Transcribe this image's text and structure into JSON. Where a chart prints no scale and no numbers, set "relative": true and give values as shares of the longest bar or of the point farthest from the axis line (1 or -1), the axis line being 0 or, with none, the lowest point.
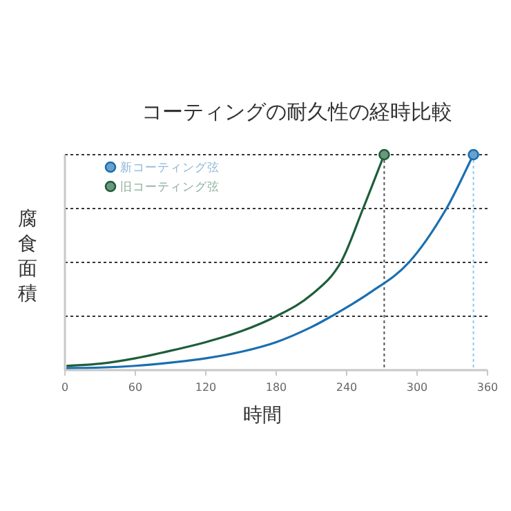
{
  "chart_data": {
    "type": "line",
    "title": "コーティングの耐久性の経時比較",
    "xlabel": "時間",
    "ylabel": "腐食面積",
    "relative": true,
    "xlim": [
      0,
      360
    ],
    "xticks": [
      0,
      60,
      120,
      180,
      240,
      300,
      360
    ],
    "grid": "y",
    "legend": "top left",
    "line_style": "solid",
    "series": [
      {
        "name": "新コーティング弦",
        "color": "#1a6fb0",
        "x": [
          2,
          30,
          60,
          90,
          120,
          150,
          180,
          210,
          227,
          260,
          293,
          325,
          348
        ],
        "values": [
          0.01,
          0.012,
          0.02,
          0.035,
          0.055,
          0.085,
          0.13,
          0.2,
          0.25,
          0.36,
          0.5,
          0.75,
          1
        ]
      },
      {
        "name": "旧コーティング弦",
        "color": "#1e5e3a",
        "x": [
          2,
          30,
          60,
          90,
          120,
          150,
          180,
          210,
          235,
          254,
          272
        ],
        "values": [
          0.02,
          0.03,
          0.055,
          0.09,
          0.13,
          0.18,
          0.25,
          0.35,
          0.5,
          0.75,
          1
        ]
      }
    ],
    "ref_lines": [
      {
        "axis": "x",
        "value": 272,
        "color": "#555555",
        "line_style": "dotted"
      },
      {
        "axis": "x",
        "value": 348,
        "color": "#8cc8ee",
        "line_style": "dotted"
      }
    ]
  }
}
